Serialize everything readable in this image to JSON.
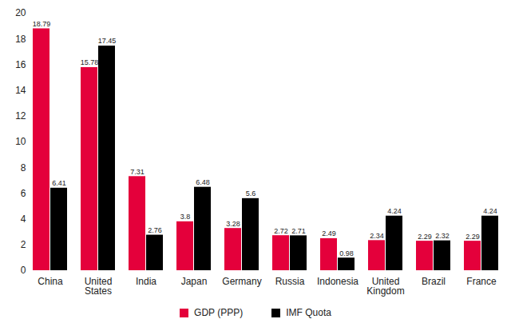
{
  "chart_data": {
    "type": "bar",
    "categories": [
      "China",
      "United States",
      "India",
      "Japan",
      "Germany",
      "Russia",
      "Indonesia",
      "United Kingdom",
      "Brazil",
      "France"
    ],
    "series": [
      {
        "name": "GDP (PPP)",
        "color": "#e4003b",
        "values": [
          18.79,
          15.78,
          7.31,
          3.8,
          3.28,
          2.72,
          2.49,
          2.34,
          2.29,
          2.29
        ]
      },
      {
        "name": "IMF Quota",
        "color": "#000000",
        "values": [
          6.41,
          17.45,
          2.76,
          6.48,
          5.6,
          2.71,
          0.98,
          4.24,
          2.32,
          4.24
        ]
      }
    ],
    "ylim": [
      0,
      20
    ],
    "yticks": [
      0,
      2,
      4,
      6,
      8,
      10,
      12,
      14,
      16,
      18,
      20
    ],
    "grid": false,
    "data_labels": true,
    "legend": "bottom"
  }
}
